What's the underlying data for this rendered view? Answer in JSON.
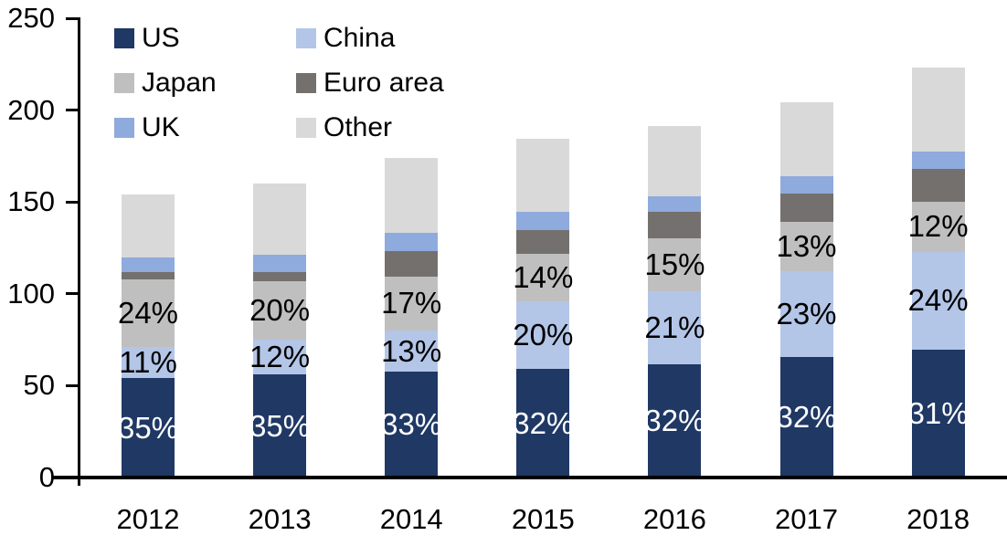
{
  "chart_data": {
    "type": "bar",
    "stacked": true,
    "title": "",
    "xlabel": "",
    "ylabel": "",
    "background": "#FFFFFF",
    "axis_color": "#000000",
    "grid": false,
    "ylim": [
      0,
      250
    ],
    "yticks": [
      0,
      50,
      100,
      150,
      200,
      250
    ],
    "categories": [
      "2012",
      "2013",
      "2014",
      "2015",
      "2016",
      "2017",
      "2018"
    ],
    "series": [
      {
        "name": "US",
        "color": "#1F3864",
        "values": [
          54,
          56,
          57.5,
          59,
          61.5,
          65.5,
          69.5
        ],
        "labels": [
          "35%",
          "35%",
          "33%",
          "32%",
          "32%",
          "32%",
          "31%"
        ],
        "label_color": "#FFFFFF"
      },
      {
        "name": "China",
        "color": "#B4C6E7",
        "values": [
          17,
          19,
          22.5,
          37,
          40,
          47,
          53.5
        ],
        "labels": [
          "11%",
          "12%",
          "13%",
          "20%",
          "21%",
          "23%",
          "24%"
        ],
        "label_color": "#000000"
      },
      {
        "name": "Japan",
        "color": "#BFBFBF",
        "values": [
          37,
          32,
          29.5,
          26,
          28.5,
          26.5,
          27
        ],
        "labels": [
          "24%",
          "20%",
          "17%",
          "14%",
          "15%",
          "13%",
          "12%"
        ],
        "label_color": "#000000"
      },
      {
        "name": "Euro area",
        "color": "#73706E",
        "values": [
          4,
          5,
          14,
          12.5,
          14.5,
          15.5,
          18
        ],
        "labels": null,
        "label_color": null
      },
      {
        "name": "UK",
        "color": "#8FAADC",
        "values": [
          8,
          9.5,
          9.5,
          10,
          8.5,
          9.5,
          9.5
        ],
        "labels": null,
        "label_color": null
      },
      {
        "name": "Other",
        "color": "#D9D9D9",
        "values": [
          34,
          38.5,
          41,
          40,
          38.5,
          40.5,
          45.5
        ],
        "labels": null,
        "label_color": null
      }
    ],
    "totals": [
      154,
      160,
      174,
      184.5,
      191.5,
      204.5,
      223
    ],
    "legend": {
      "position": "top-left",
      "columns": 2,
      "order": [
        "US",
        "China",
        "Japan",
        "Euro area",
        "UK",
        "Other"
      ]
    }
  }
}
